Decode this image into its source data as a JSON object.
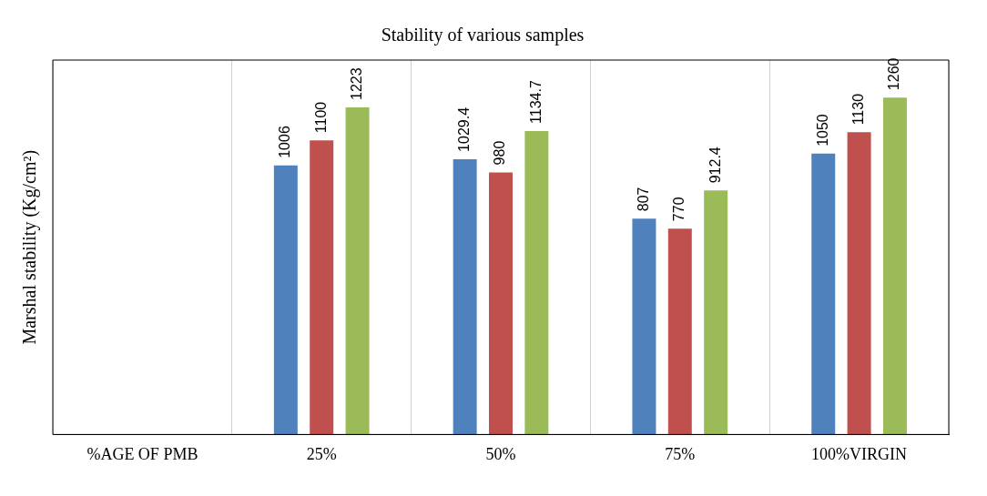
{
  "chart_data": {
    "type": "bar",
    "title": "Stability of various samples",
    "ylabel": "Marshal stability (Kg/cm²)",
    "categories": [
      "%AGE OF PMB",
      "25%",
      "50%",
      "75%",
      "100%VIRGIN"
    ],
    "series": [
      {
        "color": "#4f81bd",
        "values": [
          null,
          1006,
          1029.4,
          807,
          1050
        ]
      },
      {
        "color": "#c0504d",
        "values": [
          null,
          1100,
          980,
          770,
          1130
        ]
      },
      {
        "color": "#9bbb59",
        "values": [
          null,
          1223,
          1134.7,
          912.4,
          1260
        ]
      }
    ],
    "data_labels": true,
    "grid": "x",
    "legend": false
  }
}
